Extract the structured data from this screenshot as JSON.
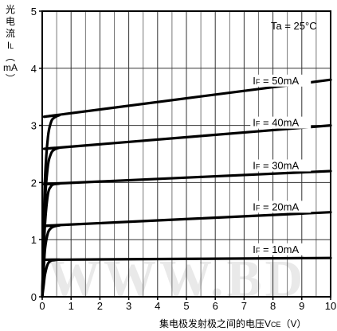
{
  "chart_data": {
    "type": "line",
    "title": "",
    "annotation": "Ta = 25°C",
    "ylabel_lines": [
      "光",
      "电",
      "流",
      "I",
      "L",
      "mA"
    ],
    "ylabel_sub": "L",
    "xlabel_prefix": "集电极发射极之间的电压V",
    "xlabel_sub": "CE",
    "xlabel_suffix": "（V）",
    "xlim": [
      0,
      10
    ],
    "ylim": [
      0,
      5
    ],
    "x_ticks": [
      "0",
      "1",
      "2",
      "3",
      "4",
      "5",
      "6",
      "7",
      "8",
      "9",
      "10"
    ],
    "y_ticks": [
      "0",
      "1",
      "2",
      "3",
      "4",
      "5"
    ],
    "x_minor_step": 0.5,
    "y_grid_step": 1,
    "grid": true,
    "watermark": "WWW.BD",
    "series": [
      {
        "name": "IF = 10mA",
        "label_main": "I",
        "label_sub": "F",
        "label_rest": " = 10mA",
        "x": [
          0,
          0.05,
          0.1,
          0.2,
          0.3,
          0.4,
          0.6,
          0.8,
          10
        ],
        "y": [
          0,
          0.2,
          0.4,
          0.58,
          0.63,
          0.64,
          0.65,
          0.65,
          0.68
        ]
      },
      {
        "name": "IF = 20mA",
        "label_main": "I",
        "label_sub": "F",
        "label_rest": " = 20mA",
        "x": [
          0,
          0.05,
          0.1,
          0.2,
          0.3,
          0.4,
          0.6,
          0.8,
          10
        ],
        "y": [
          0,
          0.45,
          0.85,
          1.12,
          1.2,
          1.23,
          1.25,
          1.26,
          1.48
        ]
      },
      {
        "name": "IF = 30mA",
        "label_main": "I",
        "label_sub": "F",
        "label_rest": " = 30mA",
        "x": [
          0,
          0.05,
          0.1,
          0.2,
          0.3,
          0.4,
          0.6,
          0.8,
          10
        ],
        "y": [
          0,
          0.7,
          1.3,
          1.8,
          1.93,
          1.97,
          1.98,
          1.99,
          2.2
        ]
      },
      {
        "name": "IF = 40mA",
        "label_main": "I",
        "label_sub": "F",
        "label_rest": " = 40mA",
        "x": [
          0,
          0.05,
          0.1,
          0.2,
          0.3,
          0.4,
          0.6,
          0.8,
          10
        ],
        "y": [
          0,
          0.9,
          1.7,
          2.3,
          2.5,
          2.57,
          2.61,
          2.62,
          3.0
        ]
      },
      {
        "name": "IF = 50mA",
        "label_main": "I",
        "label_sub": "F",
        "label_rest": " = 50mA",
        "x": [
          0,
          0.05,
          0.1,
          0.2,
          0.3,
          0.4,
          0.6,
          0.8,
          10
        ],
        "y": [
          0,
          1.1,
          2.1,
          2.8,
          3.05,
          3.13,
          3.18,
          3.2,
          3.8
        ]
      }
    ]
  }
}
